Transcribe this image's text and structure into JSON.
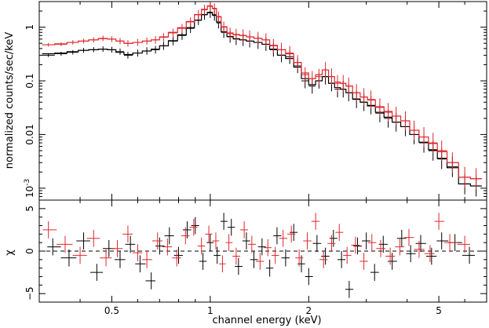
{
  "chart_data": [
    {
      "type": "scatter",
      "panel": "spectrum",
      "ylabel": "normalized counts/sec/keV",
      "yscale": "log",
      "xscale": "log",
      "xlim": [
        0.3,
        7.0
      ],
      "ylim": [
        0.0006,
        3.0
      ],
      "y_ticks": [
        {
          "value": 0.001,
          "label": "10",
          "exp": "-3"
        },
        {
          "value": 0.01,
          "label": "0.01",
          "exp": ""
        },
        {
          "value": 0.1,
          "label": "0.1",
          "exp": ""
        },
        {
          "value": 1,
          "label": "1",
          "exp": ""
        }
      ],
      "grid": false,
      "legend": "none",
      "series": [
        {
          "color": "#000000",
          "style": "crosses-with-step-model",
          "x": [
            0.32,
            0.35,
            0.38,
            0.41,
            0.44,
            0.47,
            0.5,
            0.53,
            0.56,
            0.6,
            0.64,
            0.68,
            0.72,
            0.77,
            0.82,
            0.87,
            0.92,
            0.96,
            1.0,
            1.03,
            1.06,
            1.1,
            1.15,
            1.2,
            1.26,
            1.32,
            1.4,
            1.48,
            1.56,
            1.65,
            1.75,
            1.85,
            1.95,
            2.05,
            2.15,
            2.25,
            2.35,
            2.45,
            2.55,
            2.65,
            2.8,
            2.95,
            3.1,
            3.3,
            3.5,
            3.7,
            3.95,
            4.2,
            4.5,
            4.8,
            5.1,
            5.5,
            6.0,
            6.5
          ],
          "y": [
            0.3,
            0.32,
            0.34,
            0.37,
            0.38,
            0.39,
            0.38,
            0.35,
            0.3,
            0.33,
            0.36,
            0.38,
            0.45,
            0.55,
            0.7,
            0.95,
            1.35,
            1.7,
            1.85,
            1.65,
            1.2,
            0.8,
            0.66,
            0.6,
            0.58,
            0.55,
            0.52,
            0.48,
            0.38,
            0.3,
            0.28,
            0.19,
            0.1,
            0.08,
            0.1,
            0.12,
            0.09,
            0.07,
            0.07,
            0.06,
            0.045,
            0.04,
            0.035,
            0.025,
            0.02,
            0.017,
            0.014,
            0.01,
            0.007,
            0.005,
            0.0035,
            0.0025,
            0.0012,
            0.0011
          ],
          "model_y": [
            0.32,
            0.33,
            0.35,
            0.37,
            0.38,
            0.39,
            0.38,
            0.34,
            0.31,
            0.33,
            0.36,
            0.39,
            0.45,
            0.56,
            0.72,
            0.98,
            1.35,
            1.72,
            1.9,
            1.7,
            1.25,
            0.82,
            0.67,
            0.61,
            0.58,
            0.55,
            0.52,
            0.48,
            0.39,
            0.3,
            0.26,
            0.18,
            0.11,
            0.085,
            0.1,
            0.12,
            0.09,
            0.075,
            0.07,
            0.06,
            0.046,
            0.04,
            0.034,
            0.026,
            0.021,
            0.017,
            0.014,
            0.01,
            0.0072,
            0.0052,
            0.0036,
            0.0024,
            0.0012,
            0.0011
          ]
        },
        {
          "color": "#e0262d",
          "style": "crosses-with-step-model",
          "x": [
            0.32,
            0.35,
            0.38,
            0.41,
            0.44,
            0.47,
            0.5,
            0.53,
            0.56,
            0.6,
            0.64,
            0.68,
            0.72,
            0.77,
            0.82,
            0.87,
            0.92,
            0.96,
            1.0,
            1.03,
            1.06,
            1.1,
            1.15,
            1.2,
            1.26,
            1.32,
            1.4,
            1.48,
            1.56,
            1.65,
            1.75,
            1.85,
            1.95,
            2.05,
            2.15,
            2.25,
            2.35,
            2.45,
            2.55,
            2.65,
            2.8,
            2.95,
            3.1,
            3.3,
            3.5,
            3.7,
            3.95,
            4.2,
            4.5,
            4.8,
            5.1,
            5.5,
            6.0,
            6.5
          ],
          "y": [
            0.47,
            0.48,
            0.52,
            0.55,
            0.58,
            0.62,
            0.6,
            0.55,
            0.5,
            0.52,
            0.55,
            0.58,
            0.65,
            0.78,
            0.95,
            1.25,
            1.7,
            2.1,
            2.45,
            2.2,
            1.55,
            1.0,
            0.76,
            0.72,
            0.7,
            0.66,
            0.62,
            0.58,
            0.45,
            0.38,
            0.33,
            0.22,
            0.13,
            0.11,
            0.12,
            0.16,
            0.12,
            0.09,
            0.09,
            0.08,
            0.06,
            0.05,
            0.045,
            0.032,
            0.026,
            0.022,
            0.018,
            0.012,
            0.009,
            0.007,
            0.005,
            0.003,
            0.0016,
            0.0015
          ],
          "model_y": [
            0.47,
            0.49,
            0.52,
            0.55,
            0.58,
            0.61,
            0.6,
            0.55,
            0.5,
            0.52,
            0.55,
            0.58,
            0.66,
            0.8,
            0.98,
            1.28,
            1.72,
            2.15,
            2.5,
            2.25,
            1.58,
            1.02,
            0.78,
            0.73,
            0.7,
            0.66,
            0.62,
            0.58,
            0.46,
            0.38,
            0.32,
            0.22,
            0.14,
            0.11,
            0.13,
            0.16,
            0.12,
            0.095,
            0.09,
            0.08,
            0.06,
            0.05,
            0.044,
            0.033,
            0.027,
            0.022,
            0.018,
            0.012,
            0.009,
            0.0068,
            0.0048,
            0.003,
            0.0016,
            0.0015
          ]
        }
      ]
    },
    {
      "type": "scatter",
      "panel": "residuals",
      "ylabel": "χ",
      "xlabel": "channel energy (keV)",
      "xscale": "log",
      "xlim": [
        0.3,
        7.0
      ],
      "ylim": [
        -6,
        6
      ],
      "y_ticks": [
        {
          "value": -5,
          "label": "−5"
        },
        {
          "value": 0,
          "label": "0"
        },
        {
          "value": 5,
          "label": "5"
        }
      ],
      "x_ticks": [
        {
          "value": 0.5,
          "label": "0.5"
        },
        {
          "value": 1,
          "label": "1"
        },
        {
          "value": 2,
          "label": "2"
        },
        {
          "value": 5,
          "label": "5"
        }
      ],
      "zero_line": "dashed",
      "grid": false,
      "legend": "none",
      "series": [
        {
          "color": "#000000",
          "x": [
            0.33,
            0.37,
            0.41,
            0.45,
            0.49,
            0.53,
            0.57,
            0.61,
            0.66,
            0.7,
            0.75,
            0.8,
            0.85,
            0.9,
            0.95,
            1.0,
            1.05,
            1.1,
            1.16,
            1.22,
            1.29,
            1.36,
            1.44,
            1.52,
            1.6,
            1.7,
            1.8,
            1.9,
            2.0,
            2.12,
            2.25,
            2.38,
            2.52,
            2.66,
            2.82,
            3.0,
            3.18,
            3.38,
            3.6,
            3.85,
            4.1,
            4.4,
            4.75,
            5.1,
            5.6,
            6.2
          ],
          "y": [
            0.5,
            -0.8,
            1.2,
            -2.5,
            0.3,
            -1.0,
            0.8,
            -1.5,
            -3.5,
            0.6,
            1.8,
            -0.5,
            2.5,
            3.0,
            -1.2,
            1.0,
            -0.5,
            3.5,
            2.8,
            -1.8,
            1.2,
            -1.0,
            0.5,
            -2.0,
            1.8,
            -0.8,
            2.2,
            -1.5,
            -3.0,
            0.9,
            -0.6,
            1.5,
            -1.0,
            -4.5,
            0.6,
            1.2,
            -2.5,
            0.8,
            -1.2,
            1.5,
            -0.3,
            0.9,
            -0.6,
            1.2,
            1.0,
            -0.5
          ]
        },
        {
          "color": "#e0262d",
          "x": [
            0.32,
            0.36,
            0.4,
            0.44,
            0.48,
            0.52,
            0.56,
            0.6,
            0.64,
            0.69,
            0.74,
            0.79,
            0.84,
            0.89,
            0.94,
            0.99,
            1.04,
            1.09,
            1.14,
            1.2,
            1.27,
            1.34,
            1.42,
            1.5,
            1.58,
            1.67,
            1.77,
            1.87,
            1.98,
            2.1,
            2.22,
            2.35,
            2.48,
            2.62,
            2.78,
            2.95,
            3.12,
            3.32,
            3.55,
            3.8,
            4.05,
            4.35,
            4.7,
            5.0,
            5.4,
            6.0
          ],
          "y": [
            2.5,
            0.8,
            -0.5,
            1.5,
            -0.8,
            0.3,
            2.0,
            -0.2,
            -1.0,
            1.2,
            0.5,
            -0.8,
            1.8,
            2.8,
            0.6,
            2.0,
            1.2,
            -1.5,
            1.0,
            -0.6,
            2.5,
            0.8,
            -1.2,
            0.4,
            -0.5,
            1.5,
            2.0,
            -0.8,
            1.2,
            3.5,
            -1.0,
            0.9,
            2.2,
            -0.5,
            0.7,
            -1.2,
            1.0,
            0.3,
            -0.6,
            0.5,
            1.6,
            0.2,
            -0.3,
            3.5,
            1.0,
            0.8
          ]
        }
      ]
    }
  ]
}
